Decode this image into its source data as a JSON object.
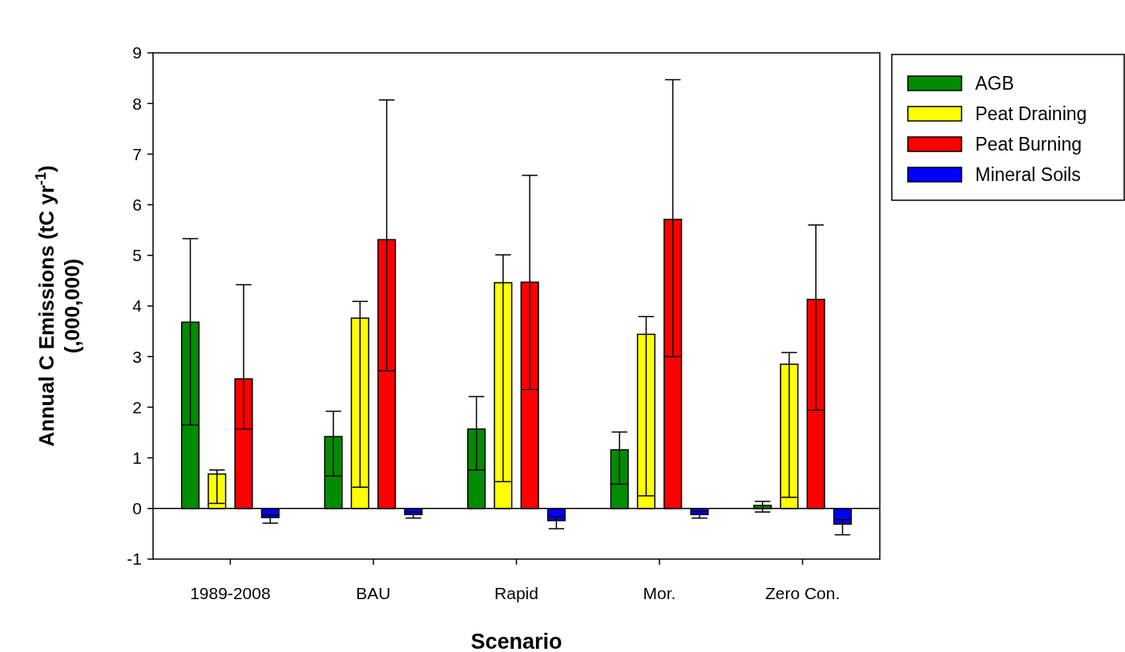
{
  "chart_data": {
    "type": "bar",
    "xlabel": "Scenario",
    "ylabel": "Annual C Emissions (tC yr$^{-1}$) (,000,000)",
    "categories": [
      "1989-2008",
      "BAU",
      "Rapid",
      "Mor.",
      "Zero Con."
    ],
    "series": [
      {
        "name": "AGB",
        "color": "#008c00",
        "values": [
          3.68,
          1.42,
          1.57,
          1.16,
          0.06
        ],
        "errors": [
          [
            1.65,
            5.33
          ],
          [
            0.64,
            1.92
          ],
          [
            0.76,
            2.21
          ],
          [
            0.48,
            1.51
          ],
          [
            -0.07,
            0.14
          ]
        ]
      },
      {
        "name": "Peat Draining",
        "color": "#ffff00",
        "values": [
          0.68,
          3.76,
          4.46,
          3.44,
          2.85
        ],
        "errors": [
          [
            0.1,
            0.76
          ],
          [
            0.42,
            4.09
          ],
          [
            0.53,
            5.01
          ],
          [
            0.25,
            3.79
          ],
          [
            0.22,
            3.08
          ]
        ]
      },
      {
        "name": "Peat Burning",
        "color": "#ff0000",
        "values": [
          2.56,
          5.31,
          4.47,
          5.71,
          4.13
        ],
        "errors": [
          [
            1.57,
            4.42
          ],
          [
            2.72,
            8.07
          ],
          [
            2.35,
            6.58
          ],
          [
            3.0,
            8.47
          ],
          [
            1.94,
            5.6
          ]
        ]
      },
      {
        "name": "Mineral Soils",
        "color": "#0000ff",
        "values": [
          -0.18,
          -0.12,
          -0.24,
          -0.12,
          -0.31
        ],
        "errors": [
          [
            -0.29,
            -0.13
          ],
          [
            -0.19,
            -0.07
          ],
          [
            -0.4,
            -0.16
          ],
          [
            -0.19,
            -0.06
          ],
          [
            -0.52,
            -0.22
          ]
        ]
      }
    ],
    "ylim": [
      -1,
      9
    ],
    "yticks": [
      -1,
      0,
      1,
      2,
      3,
      4,
      5,
      6,
      7,
      8,
      9
    ],
    "legend": "top right"
  }
}
